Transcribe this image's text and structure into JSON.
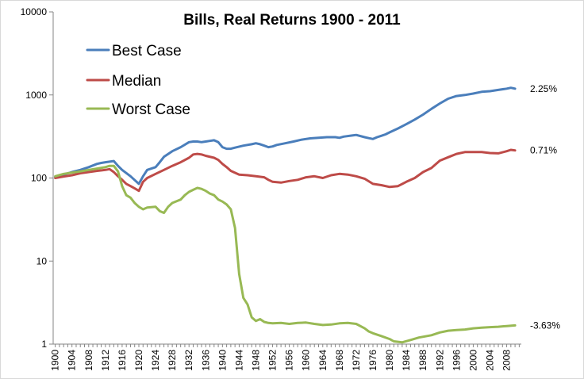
{
  "chart_data": {
    "type": "line",
    "title": "Bills, Real Returns 1900 - 2011",
    "xlabel": "",
    "ylabel": "",
    "y_scale": "log",
    "ylim": [
      1,
      10000
    ],
    "xlim": [
      1900,
      2010
    ],
    "y_ticks": [
      "1",
      "10",
      "100",
      "1000",
      "10000"
    ],
    "x_ticks": [
      "1900",
      "1904",
      "1908",
      "1912",
      "1916",
      "1920",
      "1924",
      "1928",
      "1932",
      "1936",
      "1940",
      "1944",
      "1948",
      "1952",
      "1956",
      "1960",
      "1964",
      "1968",
      "1972",
      "1976",
      "1980",
      "1984",
      "1988",
      "1992",
      "1996",
      "2000",
      "2004",
      "2008"
    ],
    "grid": false,
    "legend_position": "top-left",
    "series": [
      {
        "name": "Best Case",
        "color": "#4a7ebb",
        "end_label": "2.25%",
        "points": [
          [
            1900,
            103
          ],
          [
            1902,
            110
          ],
          [
            1904,
            118
          ],
          [
            1906,
            125
          ],
          [
            1908,
            135
          ],
          [
            1910,
            148
          ],
          [
            1911,
            152
          ],
          [
            1912,
            155
          ],
          [
            1914,
            160
          ],
          [
            1915,
            140
          ],
          [
            1916,
            125
          ],
          [
            1918,
            105
          ],
          [
            1920,
            85
          ],
          [
            1921,
            105
          ],
          [
            1922,
            125
          ],
          [
            1924,
            135
          ],
          [
            1925,
            155
          ],
          [
            1926,
            180
          ],
          [
            1928,
            210
          ],
          [
            1930,
            235
          ],
          [
            1932,
            270
          ],
          [
            1933,
            275
          ],
          [
            1934,
            275
          ],
          [
            1935,
            270
          ],
          [
            1936,
            275
          ],
          [
            1937,
            280
          ],
          [
            1938,
            285
          ],
          [
            1939,
            270
          ],
          [
            1940,
            235
          ],
          [
            1941,
            225
          ],
          [
            1942,
            225
          ],
          [
            1943,
            232
          ],
          [
            1945,
            245
          ],
          [
            1947,
            255
          ],
          [
            1948,
            262
          ],
          [
            1949,
            255
          ],
          [
            1950,
            245
          ],
          [
            1951,
            235
          ],
          [
            1952,
            240
          ],
          [
            1953,
            250
          ],
          [
            1955,
            262
          ],
          [
            1957,
            275
          ],
          [
            1959,
            290
          ],
          [
            1961,
            300
          ],
          [
            1963,
            305
          ],
          [
            1965,
            310
          ],
          [
            1967,
            310
          ],
          [
            1968,
            305
          ],
          [
            1969,
            315
          ],
          [
            1971,
            325
          ],
          [
            1972,
            330
          ],
          [
            1974,
            310
          ],
          [
            1975,
            302
          ],
          [
            1976,
            295
          ],
          [
            1977,
            310
          ],
          [
            1978,
            322
          ],
          [
            1979,
            335
          ],
          [
            1980,
            355
          ],
          [
            1982,
            395
          ],
          [
            1984,
            445
          ],
          [
            1986,
            505
          ],
          [
            1988,
            580
          ],
          [
            1990,
            680
          ],
          [
            1992,
            790
          ],
          [
            1994,
            900
          ],
          [
            1996,
            970
          ],
          [
            1998,
            1000
          ],
          [
            2000,
            1040
          ],
          [
            2002,
            1090
          ],
          [
            2004,
            1110
          ],
          [
            2006,
            1150
          ],
          [
            2008,
            1190
          ],
          [
            2009,
            1220
          ],
          [
            2010,
            1190
          ]
        ]
      },
      {
        "name": "Median",
        "color": "#be4b48",
        "end_label": "0.71%",
        "points": [
          [
            1900,
            100
          ],
          [
            1902,
            104
          ],
          [
            1904,
            108
          ],
          [
            1906,
            114
          ],
          [
            1908,
            118
          ],
          [
            1910,
            122
          ],
          [
            1912,
            125
          ],
          [
            1913,
            128
          ],
          [
            1914,
            118
          ],
          [
            1915,
            105
          ],
          [
            1916,
            95
          ],
          [
            1917,
            85
          ],
          [
            1918,
            80
          ],
          [
            1919,
            75
          ],
          [
            1920,
            70
          ],
          [
            1921,
            90
          ],
          [
            1922,
            100
          ],
          [
            1924,
            112
          ],
          [
            1926,
            125
          ],
          [
            1928,
            140
          ],
          [
            1930,
            155
          ],
          [
            1932,
            175
          ],
          [
            1933,
            192
          ],
          [
            1934,
            195
          ],
          [
            1935,
            192
          ],
          [
            1936,
            185
          ],
          [
            1938,
            175
          ],
          [
            1939,
            165
          ],
          [
            1940,
            148
          ],
          [
            1941,
            135
          ],
          [
            1942,
            122
          ],
          [
            1944,
            110
          ],
          [
            1946,
            108
          ],
          [
            1948,
            105
          ],
          [
            1950,
            102
          ],
          [
            1951,
            95
          ],
          [
            1952,
            90
          ],
          [
            1954,
            88
          ],
          [
            1956,
            92
          ],
          [
            1958,
            95
          ],
          [
            1960,
            102
          ],
          [
            1962,
            105
          ],
          [
            1964,
            100
          ],
          [
            1966,
            108
          ],
          [
            1968,
            112
          ],
          [
            1970,
            110
          ],
          [
            1972,
            105
          ],
          [
            1974,
            98
          ],
          [
            1976,
            85
          ],
          [
            1978,
            82
          ],
          [
            1980,
            78
          ],
          [
            1982,
            80
          ],
          [
            1984,
            90
          ],
          [
            1986,
            100
          ],
          [
            1988,
            118
          ],
          [
            1990,
            132
          ],
          [
            1992,
            162
          ],
          [
            1994,
            178
          ],
          [
            1996,
            195
          ],
          [
            1998,
            205
          ],
          [
            2000,
            205
          ],
          [
            2002,
            205
          ],
          [
            2004,
            200
          ],
          [
            2006,
            198
          ],
          [
            2008,
            210
          ],
          [
            2009,
            218
          ],
          [
            2010,
            215
          ]
        ]
      },
      {
        "name": "Worst Case",
        "color": "#98b954",
        "end_label": "-3.63%",
        "points": [
          [
            1900,
            105
          ],
          [
            1902,
            112
          ],
          [
            1904,
            116
          ],
          [
            1906,
            120
          ],
          [
            1908,
            125
          ],
          [
            1910,
            130
          ],
          [
            1912,
            135
          ],
          [
            1913,
            140
          ],
          [
            1914,
            140
          ],
          [
            1915,
            120
          ],
          [
            1916,
            80
          ],
          [
            1917,
            62
          ],
          [
            1918,
            58
          ],
          [
            1919,
            50
          ],
          [
            1920,
            45
          ],
          [
            1921,
            42
          ],
          [
            1922,
            44
          ],
          [
            1924,
            45
          ],
          [
            1925,
            40
          ],
          [
            1926,
            38
          ],
          [
            1927,
            45
          ],
          [
            1928,
            50
          ],
          [
            1930,
            55
          ],
          [
            1931,
            62
          ],
          [
            1932,
            68
          ],
          [
            1933,
            72
          ],
          [
            1934,
            76
          ],
          [
            1935,
            74
          ],
          [
            1936,
            70
          ],
          [
            1937,
            65
          ],
          [
            1938,
            62
          ],
          [
            1939,
            55
          ],
          [
            1940,
            52
          ],
          [
            1941,
            48
          ],
          [
            1942,
            42
          ],
          [
            1943,
            25
          ],
          [
            1944,
            7
          ],
          [
            1945,
            3.6
          ],
          [
            1946,
            3
          ],
          [
            1947,
            2.1
          ],
          [
            1948,
            1.9
          ],
          [
            1949,
            2
          ],
          [
            1950,
            1.85
          ],
          [
            1951,
            1.8
          ],
          [
            1952,
            1.78
          ],
          [
            1954,
            1.8
          ],
          [
            1956,
            1.75
          ],
          [
            1958,
            1.8
          ],
          [
            1960,
            1.82
          ],
          [
            1962,
            1.75
          ],
          [
            1964,
            1.7
          ],
          [
            1966,
            1.72
          ],
          [
            1968,
            1.78
          ],
          [
            1970,
            1.8
          ],
          [
            1972,
            1.75
          ],
          [
            1974,
            1.55
          ],
          [
            1975,
            1.42
          ],
          [
            1976,
            1.35
          ],
          [
            1978,
            1.25
          ],
          [
            1980,
            1.15
          ],
          [
            1981,
            1.08
          ],
          [
            1983,
            1.05
          ],
          [
            1985,
            1.12
          ],
          [
            1987,
            1.2
          ],
          [
            1990,
            1.28
          ],
          [
            1992,
            1.38
          ],
          [
            1994,
            1.45
          ],
          [
            1996,
            1.48
          ],
          [
            1998,
            1.5
          ],
          [
            2000,
            1.55
          ],
          [
            2002,
            1.58
          ],
          [
            2004,
            1.6
          ],
          [
            2006,
            1.62
          ],
          [
            2008,
            1.65
          ],
          [
            2010,
            1.68
          ]
        ]
      }
    ]
  }
}
